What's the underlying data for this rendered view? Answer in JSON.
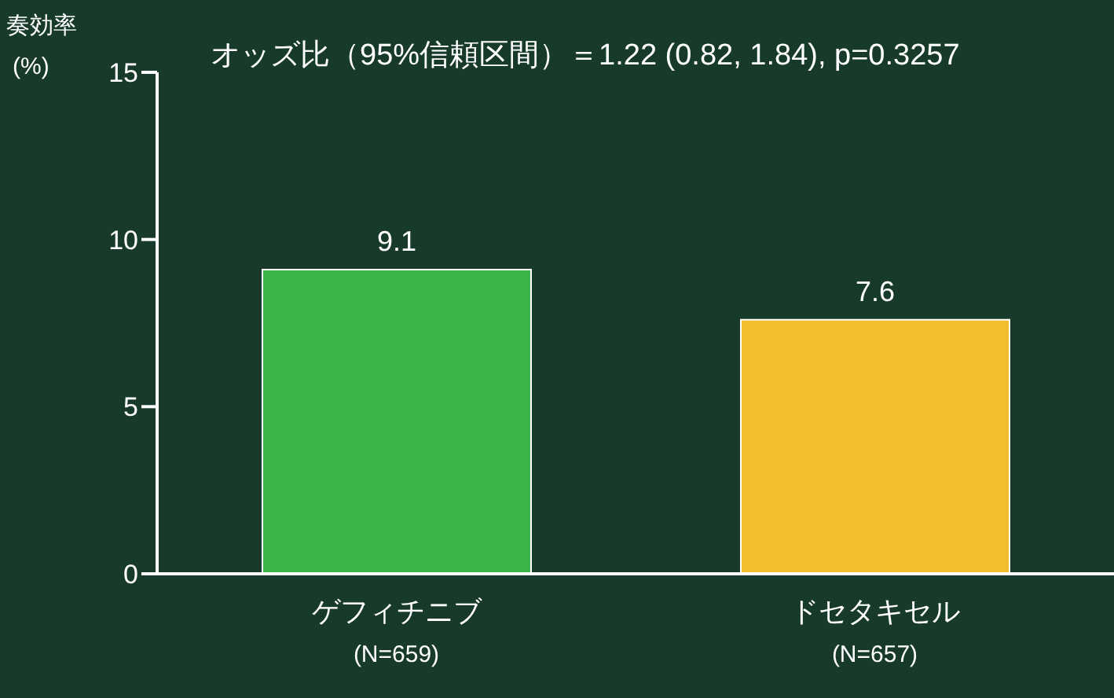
{
  "chart_data": {
    "type": "bar",
    "title": "オッズ比（95%信頼区間）＝1.22 (0.82, 1.84), p=0.3257",
    "ylabel": "奏効率\n(%)",
    "categories": [
      "ゲフィチニブ\n(N=659)",
      "ドセタキセル\n(N=657)"
    ],
    "values": [
      9.1,
      7.6
    ],
    "colors": [
      "#3cb44a",
      "#f2be2e"
    ],
    "ylim": [
      0,
      15
    ],
    "yticks": [
      0,
      5,
      10,
      15
    ],
    "grid": false,
    "data_labels": true
  }
}
